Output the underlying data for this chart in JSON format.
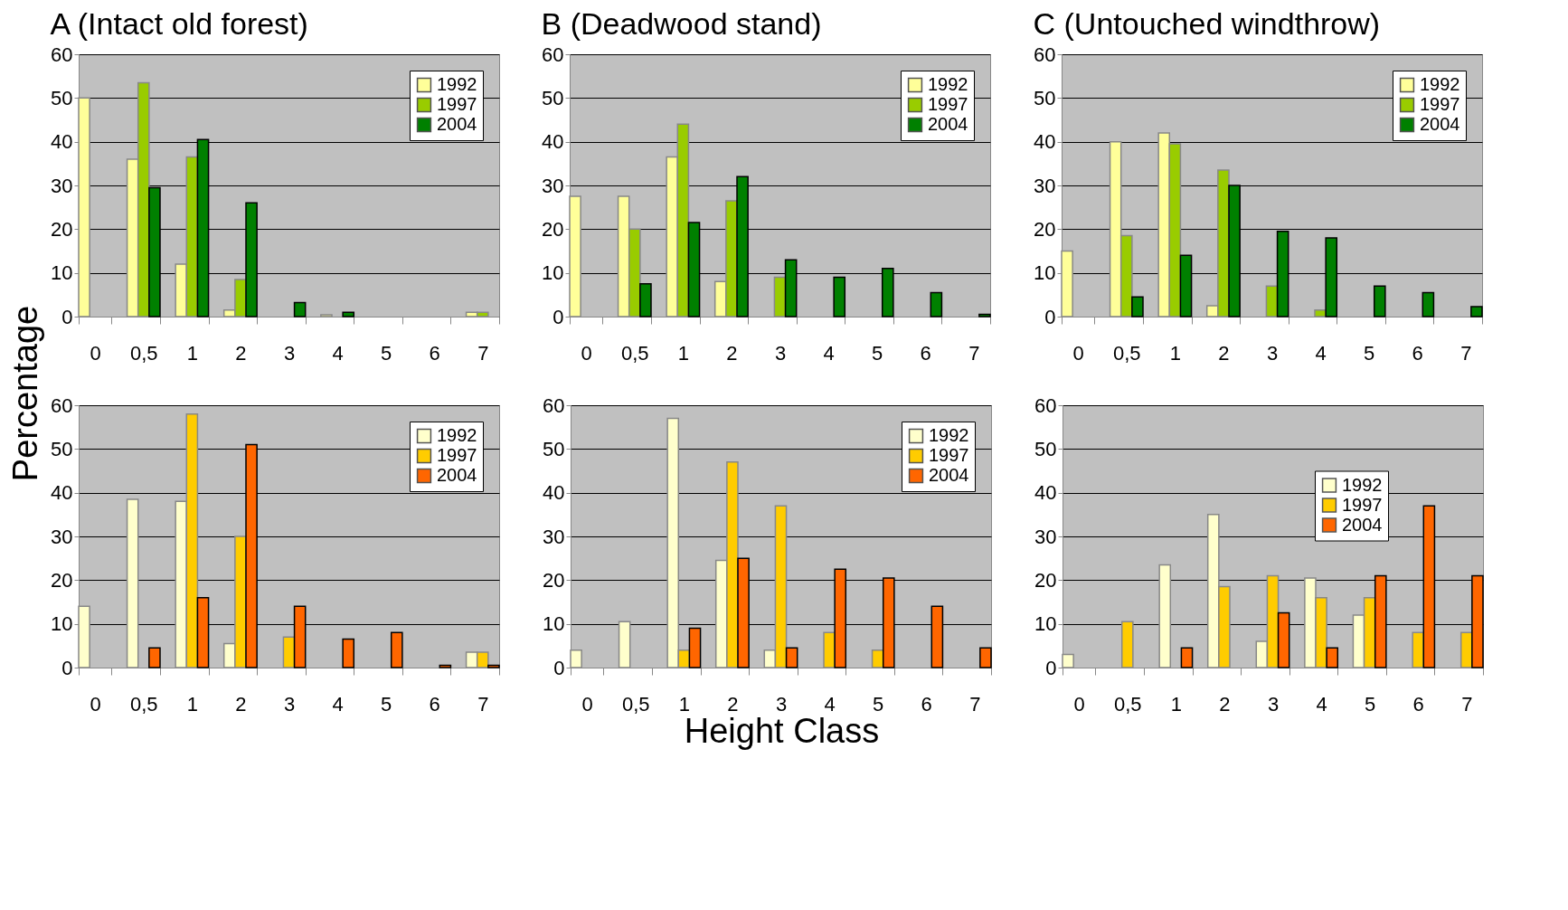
{
  "chart_data": [
    {
      "type": "bar",
      "title": "A (Intact old forest)",
      "ylabel": "Percentage",
      "categories": [
        "0",
        "0,5",
        "1",
        "2",
        "3",
        "4",
        "5",
        "6",
        "7"
      ],
      "ylim": [
        0,
        60
      ],
      "yticks": [
        0,
        10,
        20,
        30,
        40,
        50,
        60
      ],
      "grid": "y",
      "legend": "top right",
      "series": [
        {
          "name": "1992",
          "color": "#ffff99",
          "values": [
            50,
            36,
            12,
            1.5,
            0,
            0.4,
            0,
            0,
            1
          ]
        },
        {
          "name": "1997",
          "color": "#99cc00",
          "values": [
            0,
            53.5,
            36.5,
            8.5,
            0,
            0,
            0,
            0,
            1
          ]
        },
        {
          "name": "2004",
          "color": "#008000",
          "values": [
            0,
            29.5,
            40.5,
            26,
            3.2,
            1,
            0,
            0,
            0
          ]
        }
      ]
    },
    {
      "type": "bar",
      "title": "B (Deadwood stand)",
      "categories": [
        "0",
        "0,5",
        "1",
        "2",
        "3",
        "4",
        "5",
        "6",
        "7"
      ],
      "ylim": [
        0,
        60
      ],
      "yticks": [
        0,
        10,
        20,
        30,
        40,
        50,
        60
      ],
      "grid": "y",
      "legend": "top right",
      "series": [
        {
          "name": "1992",
          "color": "#ffff99",
          "values": [
            27.5,
            27.5,
            36.5,
            8,
            0,
            0,
            0,
            0,
            0
          ]
        },
        {
          "name": "1997",
          "color": "#99cc00",
          "values": [
            0,
            20,
            44,
            26.5,
            9,
            0,
            0,
            0,
            0
          ]
        },
        {
          "name": "2004",
          "color": "#008000",
          "values": [
            0,
            7.5,
            21.5,
            32,
            13,
            9,
            11,
            5.5,
            0.5
          ]
        }
      ]
    },
    {
      "type": "bar",
      "title": "C (Untouched windthrow)",
      "categories": [
        "0",
        "0,5",
        "1",
        "2",
        "3",
        "4",
        "5",
        "6",
        "7"
      ],
      "ylim": [
        0,
        60
      ],
      "yticks": [
        0,
        10,
        20,
        30,
        40,
        50,
        60
      ],
      "grid": "y",
      "legend": "top right",
      "series": [
        {
          "name": "1992",
          "color": "#ffff99",
          "values": [
            15,
            40,
            42,
            2.5,
            0,
            0,
            0,
            0,
            0
          ]
        },
        {
          "name": "1997",
          "color": "#99cc00",
          "values": [
            0,
            18.5,
            39.5,
            33.5,
            7,
            1.5,
            0,
            0,
            0
          ]
        },
        {
          "name": "2004",
          "color": "#008000",
          "values": [
            0,
            4.5,
            14,
            30,
            19.5,
            18,
            7,
            5.5,
            2.3
          ]
        }
      ]
    },
    {
      "type": "bar",
      "categories": [
        "0",
        "0,5",
        "1",
        "2",
        "3",
        "4",
        "5",
        "6",
        "7"
      ],
      "ylim": [
        0,
        60
      ],
      "yticks": [
        0,
        10,
        20,
        30,
        40,
        50,
        60
      ],
      "grid": "y",
      "legend": "top right",
      "series": [
        {
          "name": "1992",
          "color": "#ffffcc",
          "values": [
            14,
            38.5,
            38,
            5.5,
            0,
            0,
            0,
            0,
            3.5
          ]
        },
        {
          "name": "1997",
          "color": "#ffcc00",
          "values": [
            0,
            0,
            58,
            30,
            7,
            0,
            0,
            0,
            3.5
          ]
        },
        {
          "name": "2004",
          "color": "#ff6600",
          "values": [
            0,
            4.5,
            16,
            51,
            14,
            6.5,
            8,
            0.5,
            0.5
          ]
        }
      ]
    },
    {
      "type": "bar",
      "xlabel": "Height Class",
      "categories": [
        "0",
        "0,5",
        "1",
        "2",
        "3",
        "4",
        "5",
        "6",
        "7"
      ],
      "ylim": [
        0,
        60
      ],
      "yticks": [
        0,
        10,
        20,
        30,
        40,
        50,
        60
      ],
      "grid": "y",
      "legend": "top right",
      "series": [
        {
          "name": "1992",
          "color": "#ffffcc",
          "values": [
            4,
            10.5,
            57,
            24.5,
            4,
            0,
            0,
            0,
            0
          ]
        },
        {
          "name": "1997",
          "color": "#ffcc00",
          "values": [
            0,
            0,
            4,
            47,
            37,
            8,
            4,
            0,
            0
          ]
        },
        {
          "name": "2004",
          "color": "#ff6600",
          "values": [
            0,
            0,
            9,
            25,
            4.5,
            22.5,
            20.5,
            14,
            4.5
          ]
        }
      ]
    },
    {
      "type": "bar",
      "categories": [
        "0",
        "0,5",
        "1",
        "2",
        "3",
        "4",
        "5",
        "6",
        "7"
      ],
      "ylim": [
        0,
        60
      ],
      "yticks": [
        0,
        10,
        20,
        30,
        40,
        50,
        60
      ],
      "grid": "y",
      "legend": "right",
      "series": [
        {
          "name": "1992",
          "color": "#ffffcc",
          "values": [
            3,
            0,
            23.5,
            35,
            6,
            20.5,
            12,
            0,
            0
          ]
        },
        {
          "name": "1997",
          "color": "#ffcc00",
          "values": [
            0,
            10.5,
            0,
            18.5,
            21,
            16,
            16,
            8,
            8
          ]
        },
        {
          "name": "2004",
          "color": "#ff6600",
          "values": [
            0,
            0,
            4.5,
            0,
            12.5,
            4.5,
            21,
            37,
            21
          ]
        }
      ]
    }
  ]
}
